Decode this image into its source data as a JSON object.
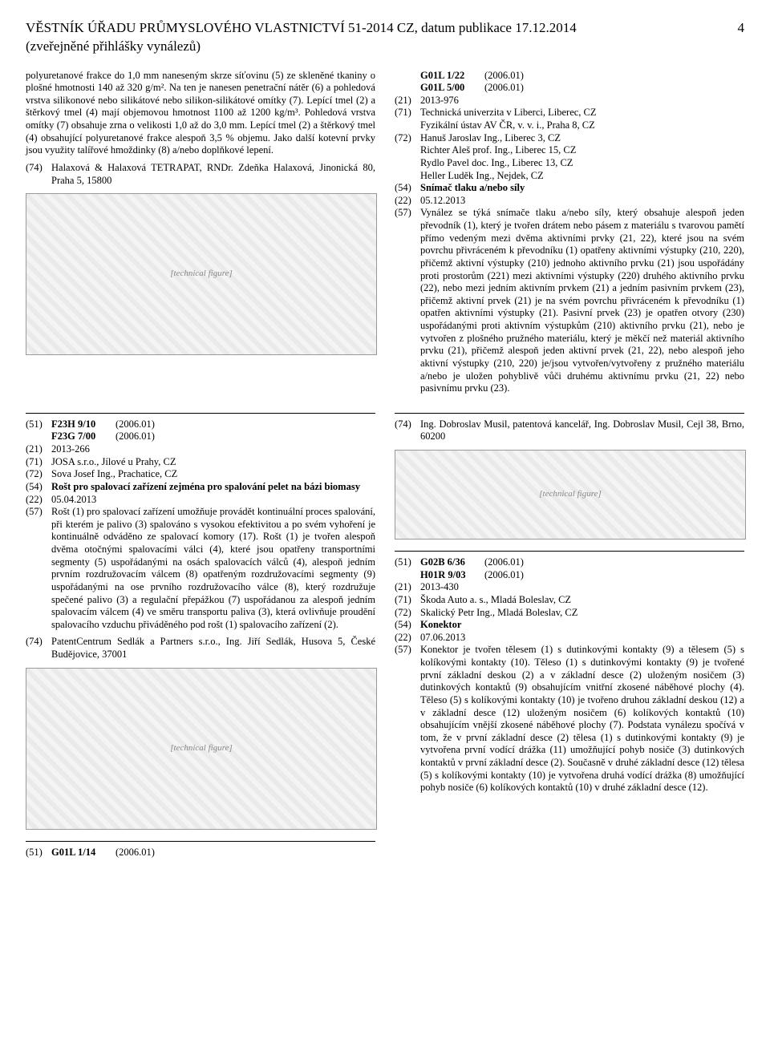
{
  "header": {
    "title": "VĚSTNÍK ÚŘADU PRŮMYSLOVÉHO VLASTNICTVÍ 51-2014 CZ, datum publikace 17.12.2014",
    "subtitle": "(zveřejněné přihlášky vynálezů)",
    "page_number": "4"
  },
  "leftTop": {
    "paragraph": "polyuretanové frakce do 1,0 mm naneseným skrze síťovinu (5) ze skleněné tkaniny o plošné hmotnosti 140 až 320 g/m². Na ten je nanesen penetrační nátěr (6) a pohledová vrstva silikonové nebo silikátové nebo silikon-silikátové omítky (7). Lepící tmel (2) a štěrkový tmel (4) mají objemovou hmotnost 1100 až 1200 kg/m³. Pohledová vrstva omítky (7) obsahuje zrna o velikosti 1,0 až do 3,0 mm. Lepící tmel (2) a štěrkový tmel (4) obsahující polyuretanové frakce alespoň 3,5 % objemu. Jako další kotevní prvky jsou využity talířové hmoždinky (8) a/nebo doplňkové lepení.",
    "agentCode": "(74)",
    "agent": "Halaxová & Halaxová TETRAPAT, RNDr. Zdeňka Halaxová, Jinonická 80, Praha 5, 15800",
    "fig_label": "[technical figure]"
  },
  "rightTop": {
    "classes": [
      {
        "code": "",
        "cls": "G01L 1/22",
        "yr": "(2006.01)"
      },
      {
        "code": "",
        "cls": "G01L 5/00",
        "yr": "(2006.01)"
      }
    ],
    "lines": [
      {
        "code": "(21)",
        "text": "2013-976"
      },
      {
        "code": "(71)",
        "text": "Technická univerzita v Liberci, Liberec, CZ\nFyzikální ústav AV ČR, v. v. i., Praha 8, CZ"
      },
      {
        "code": "(72)",
        "text": "Hanuš Jaroslav Ing., Liberec 3, CZ\nRichter Aleš prof. Ing., Liberec 15, CZ\nRydlo Pavel doc. Ing., Liberec 13, CZ\nHeller Luděk Ing., Nejdek, CZ"
      },
      {
        "code": "(54)",
        "text": "Snímač tlaku a/nebo síly",
        "bold": true
      },
      {
        "code": "(22)",
        "text": "05.12.2013"
      },
      {
        "code": "(57)",
        "text": "Vynález se týká snímače tlaku a/nebo síly, který obsahuje alespoň jeden převodník (1), který je tvořen drátem nebo pásem z materiálu s tvarovou pamětí přímo vedeným mezi dvěma aktivními prvky (21, 22), které jsou na svém povrchu přivráceném k převodníku (1) opatřeny aktivními výstupky (210, 220), přičemž aktivní výstupky (210) jednoho aktivního prvku (21) jsou uspořádány proti prostorům (221) mezi aktivními výstupky (220) druhého aktivního prvku (22), nebo mezi jedním aktivním prvkem (21) a jedním pasivním prvkem (23), přičemž aktivní prvek (21) je na svém povrchu přivráceném k převodníku (1) opatřen aktivními výstupky (21). Pasivní prvek (23) je opatřen otvory (230) uspořádanými proti aktivním výstupkům (210) aktivního prvku (21), nebo je vytvořen z plošného pružného materiálu, který je měkčí než materiál aktivního prvku (21), přičemž alespoň jeden aktivní prvek (21, 22), nebo alespoň jeho aktivní výstupky (210, 220) je/jsou vytvořen/vytvořeny z pružného materiálu a/nebo je uložen pohyblivě vůči druhému aktivnímu prvku (21, 22) nebo pasivnímu prvku (23)."
      }
    ]
  },
  "leftMid": {
    "classes": [
      {
        "code": "(51)",
        "cls": "F23H 9/10",
        "yr": "(2006.01)"
      },
      {
        "code": "",
        "cls": "F23G 7/00",
        "yr": "(2006.01)"
      }
    ],
    "lines": [
      {
        "code": "(21)",
        "text": "2013-266"
      },
      {
        "code": "(71)",
        "text": "JOSA s.r.o., Jílové u Prahy, CZ"
      },
      {
        "code": "(72)",
        "text": "Sova Josef Ing., Prachatice, CZ"
      },
      {
        "code": "(54)",
        "text": "Rošt pro spalovací zařízení zejména pro spalování pelet na bázi biomasy",
        "bold": true
      },
      {
        "code": "(22)",
        "text": "05.04.2013"
      },
      {
        "code": "(57)",
        "text": "Rošt (1) pro spalovací zařízení umožňuje provádět kontinuální proces spalování, při kterém je palivo (3) spalováno s vysokou efektivitou a po svém vyhoření je kontinuálně odváděno ze spalovací komory (17). Rošt (1) je tvořen alespoň dvěma otočnými spalovacími válci (4), které jsou opatřeny transportními segmenty (5) uspořádanými na osách spalovacích válců (4), alespoň jedním prvním rozdružovacím válcem (8) opatřeným rozdružovacími segmenty (9) uspořádanými na ose prvního rozdružovacího válce (8), který rozdružuje spečené palivo (3) a regulační přepážkou (7) uspořádanou za alespoň jedním spalovacím válcem (4) ve směru transportu paliva (3), která ovlivňuje proudění spalovacího vzduchu přiváděného pod rošt (1) spalovacího zařízení (2)."
      }
    ],
    "agentCode": "(74)",
    "agent": "PatentCentrum Sedlák a Partners s.r.o., Ing. Jiří Sedlák, Husova 5, České Budějovice, 37001",
    "fig_label": "[technical figure]"
  },
  "rightMid": {
    "agentCode": "(74)",
    "agent": "Ing. Dobroslav Musil, patentová kancelář, Ing. Dobroslav Musil, Cejl 38, Brno, 60200",
    "fig_label": "[technical figure]"
  },
  "rightBottom": {
    "classes": [
      {
        "code": "(51)",
        "cls": "G02B 6/36",
        "yr": "(2006.01)"
      },
      {
        "code": "",
        "cls": "H01R 9/03",
        "yr": "(2006.01)"
      }
    ],
    "lines": [
      {
        "code": "(21)",
        "text": "2013-430"
      },
      {
        "code": "(71)",
        "text": "Škoda Auto a. s., Mladá Boleslav, CZ"
      },
      {
        "code": "(72)",
        "text": "Skalický Petr Ing., Mladá Boleslav, CZ"
      },
      {
        "code": "(54)",
        "text": "Konektor",
        "bold": true
      },
      {
        "code": "(22)",
        "text": "07.06.2013"
      },
      {
        "code": "(57)",
        "text": "Konektor je tvořen tělesem (1) s dutinkovými kontakty (9) a tělesem (5) s kolíkovými kontakty (10). Těleso (1) s dutinkovými kontakty (9) je tvořené první základní deskou (2) a v základní desce (2) uloženým nosičem (3) dutinkových kontaktů (9) obsahujícím vnitřní zkosené náběhové plochy (4). Těleso (5) s kolíkovými kontakty (10) je tvořeno druhou základní deskou (12) a v základní desce (12) uloženým nosičem (6) kolíkových kontaktů (10) obsahujícím vnější zkosené náběhové plochy (7). Podstata vynálezu spočívá v tom, že v první základní desce (2) tělesa (1) s dutinkovými kontakty (9) je vytvořena první vodící drážka (11) umožňující pohyb nosiče (3) dutinkových kontaktů v první základní desce (2). Současně v druhé základní desce (12) tělesa (5) s kolíkovými kontakty (10) je vytvořena druhá vodící drážka (8) umožňující pohyb nosiče (6) kolíkových kontaktů (10) v druhé základní desce (12)."
      }
    ]
  },
  "leftBottom": {
    "classes": [
      {
        "code": "(51)",
        "cls": "G01L 1/14",
        "yr": "(2006.01)"
      }
    ]
  }
}
